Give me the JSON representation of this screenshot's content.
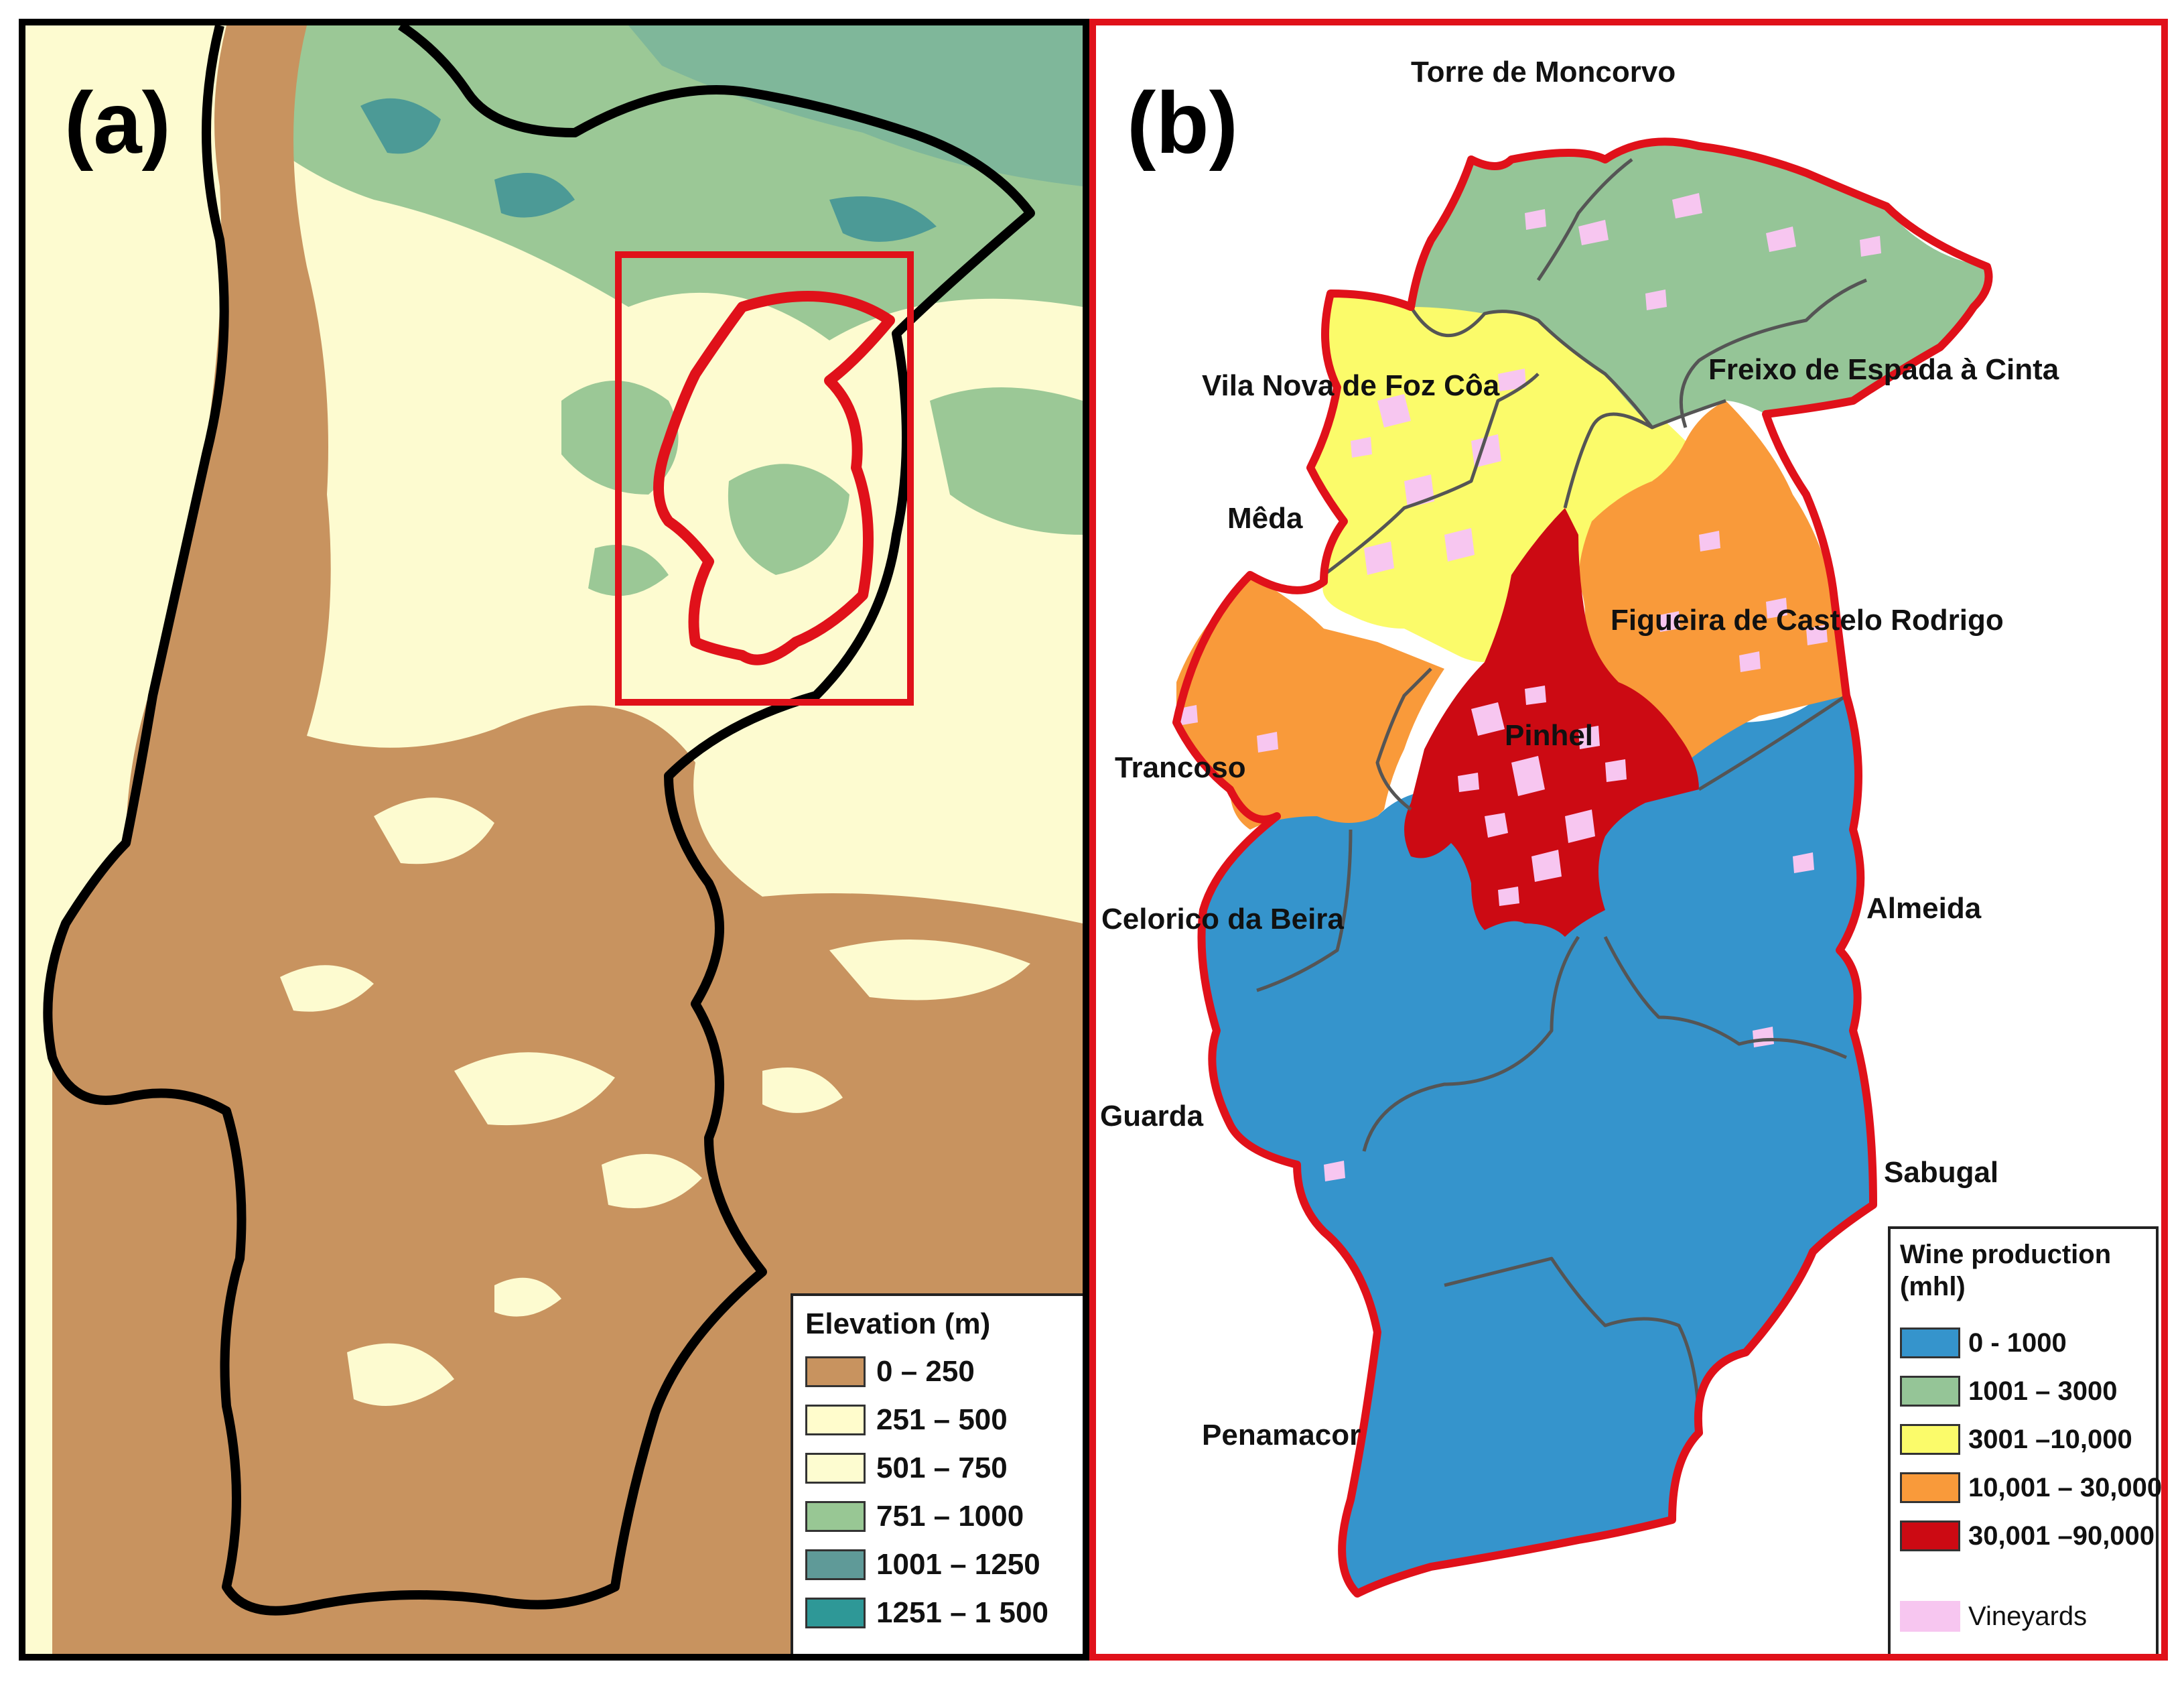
{
  "panel_a": {
    "letter": "(a)",
    "legend": {
      "title": "Elevation (m)",
      "items": [
        {
          "label": "0 – 250",
          "color": "#c8935f"
        },
        {
          "label": "251 – 500",
          "color": "#fffccc"
        },
        {
          "label": "501 – 750",
          "color": "#fdfcd0"
        },
        {
          "label": "751 – 1000",
          "color": "#98c794"
        },
        {
          "label": "1001   – 1250",
          "color": "#5f9a98"
        },
        {
          "label": "1251   – 1 500",
          "color": "#2e9897"
        }
      ]
    }
  },
  "panel_b": {
    "letter": "(b)",
    "municipalities": [
      {
        "name": "Torre de Moncorvo",
        "production_class": "1001 – 3000"
      },
      {
        "name": "Freixo de Espada à Cinta",
        "production_class": "1001 – 3000"
      },
      {
        "name": "Vila Nova de Foz Côa",
        "production_class": "3001 –10,000"
      },
      {
        "name": "Mêda",
        "production_class": "3001 –10,000"
      },
      {
        "name": "Figueira de Castelo Rodrigo",
        "production_class": "10,001 – 30,000"
      },
      {
        "name": "Trancoso",
        "production_class": "10,001 – 30,000"
      },
      {
        "name": "Pinhel",
        "production_class": "30,001 –90,000"
      },
      {
        "name": "Celorico da Beira",
        "production_class": "0 - 1000"
      },
      {
        "name": "Almeida",
        "production_class": "0 - 1000"
      },
      {
        "name": "Guarda",
        "production_class": "0 - 1000"
      },
      {
        "name": "Sabugal",
        "production_class": "0 - 1000"
      },
      {
        "name": "Penamacor",
        "production_class": "0 - 1000"
      }
    ],
    "legend": {
      "title_line1": "Wine production",
      "title_line2": "(mhl)",
      "items": [
        {
          "label": "0 - 1000",
          "color": "#3594cc"
        },
        {
          "label": "1001 – 3000",
          "color": "#95c597"
        },
        {
          "label": "3001 –10,000",
          "color": "#fbfb6a"
        },
        {
          "label": "10,001 – 30,000",
          "color": "#f99a3a"
        },
        {
          "label": "30,001 –90,000",
          "color": "#cc0a13"
        }
      ],
      "vineyards_label": "Vineyards",
      "vineyards_color": "#f7c6f0"
    }
  }
}
